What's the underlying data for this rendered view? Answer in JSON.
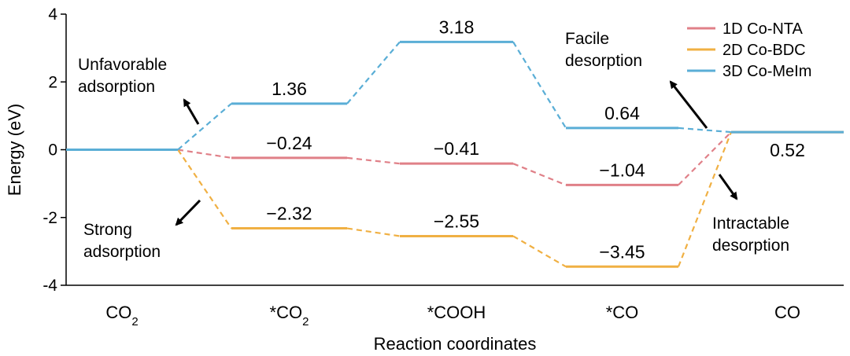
{
  "chart_data": {
    "type": "line",
    "title": "",
    "xlabel": "Reaction coordinates",
    "ylabel": "Energy (eV)",
    "ylim": [
      -4,
      4
    ],
    "yticks": [
      "4",
      "2",
      "0",
      "-2",
      "-4"
    ],
    "ytick_values": [
      4,
      2,
      0,
      -2,
      -4
    ],
    "categories": [
      "CO2",
      "*CO2",
      "*COOH",
      "*CO",
      "CO"
    ],
    "series": [
      {
        "name": "1D Co-NTA",
        "color": "#e08088",
        "values": [
          0,
          -0.24,
          -0.41,
          -1.04,
          0.52
        ],
        "labels": [
          "",
          "−0.24",
          "−0.41",
          "−1.04",
          ""
        ]
      },
      {
        "name": "2D Co-BDC",
        "color": "#f0b043",
        "values": [
          0,
          -2.32,
          -2.55,
          -3.45,
          0.52
        ],
        "labels": [
          "",
          "−2.32",
          "−2.55",
          "−3.45",
          ""
        ]
      },
      {
        "name": "3D Co-MeIm",
        "color": "#5aaed6",
        "values": [
          0,
          1.36,
          3.18,
          0.64,
          0.52
        ],
        "labels": [
          "",
          "1.36",
          "3.18",
          "0.64",
          "0.52"
        ]
      }
    ],
    "annotations": [
      {
        "lines": [
          "Unfavorable",
          "adsorption"
        ],
        "arrow": "up-left"
      },
      {
        "lines": [
          "Strong",
          "adsorption"
        ],
        "arrow": "down-left"
      },
      {
        "lines": [
          "Facile",
          "desorption"
        ],
        "arrow": "up-left"
      },
      {
        "lines": [
          "Intractable",
          "desorption"
        ],
        "arrow": "down-right"
      }
    ],
    "grid": false,
    "legend_position": "top-right"
  }
}
